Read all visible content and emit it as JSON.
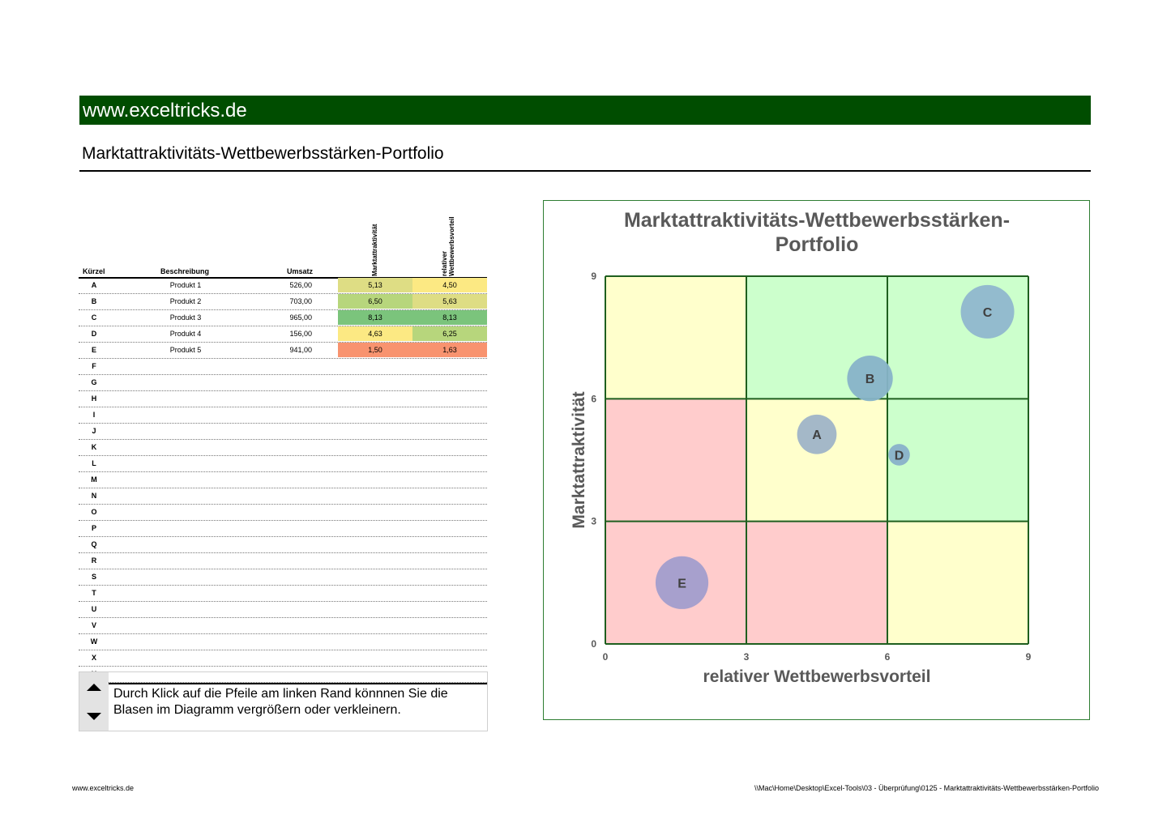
{
  "header": {
    "site": "www.exceltricks.de",
    "title": "Marktattraktivitäts-Wettbewerbsstärken-Portfolio"
  },
  "table": {
    "headers": {
      "kuerzel": "Kürzel",
      "beschreibung": "Beschreibung",
      "umsatz": "Umsatz",
      "markt": "Marktattraktivität",
      "wett_1": "relativer",
      "wett_2": "Wettbewerbsvorteil"
    },
    "rows": [
      {
        "k": "A",
        "b": "Produkt 1",
        "u": "526,00",
        "m": "5,13",
        "w": "4,50",
        "mc": "#dedd84",
        "wc": "#fce983"
      },
      {
        "k": "B",
        "b": "Produkt 2",
        "u": "703,00",
        "m": "6,50",
        "w": "5,63",
        "mc": "#b7d67c",
        "wc": "#dedd84"
      },
      {
        "k": "C",
        "b": "Produkt 3",
        "u": "965,00",
        "m": "8,13",
        "w": "8,13",
        "mc": "#7bc47c",
        "wc": "#7bc47c"
      },
      {
        "k": "D",
        "b": "Produkt 4",
        "u": "156,00",
        "m": "4,63",
        "w": "6,25",
        "mc": "#fce983",
        "wc": "#b7d67c"
      },
      {
        "k": "E",
        "b": "Produkt 5",
        "u": "941,00",
        "m": "1,50",
        "w": "1,63",
        "mc": "#f8936f",
        "wc": "#f8936f"
      },
      {
        "k": "F",
        "b": "",
        "u": "",
        "m": "",
        "w": ""
      },
      {
        "k": "G",
        "b": "",
        "u": "",
        "m": "",
        "w": ""
      },
      {
        "k": "H",
        "b": "",
        "u": "",
        "m": "",
        "w": ""
      },
      {
        "k": "I",
        "b": "",
        "u": "",
        "m": "",
        "w": ""
      },
      {
        "k": "J",
        "b": "",
        "u": "",
        "m": "",
        "w": ""
      },
      {
        "k": "K",
        "b": "",
        "u": "",
        "m": "",
        "w": ""
      },
      {
        "k": "L",
        "b": "",
        "u": "",
        "m": "",
        "w": ""
      },
      {
        "k": "M",
        "b": "",
        "u": "",
        "m": "",
        "w": ""
      },
      {
        "k": "N",
        "b": "",
        "u": "",
        "m": "",
        "w": ""
      },
      {
        "k": "O",
        "b": "",
        "u": "",
        "m": "",
        "w": ""
      },
      {
        "k": "P",
        "b": "",
        "u": "",
        "m": "",
        "w": ""
      },
      {
        "k": "Q",
        "b": "",
        "u": "",
        "m": "",
        "w": ""
      },
      {
        "k": "R",
        "b": "",
        "u": "",
        "m": "",
        "w": ""
      },
      {
        "k": "S",
        "b": "",
        "u": "",
        "m": "",
        "w": ""
      },
      {
        "k": "T",
        "b": "",
        "u": "",
        "m": "",
        "w": ""
      },
      {
        "k": "U",
        "b": "",
        "u": "",
        "m": "",
        "w": ""
      },
      {
        "k": "V",
        "b": "",
        "u": "",
        "m": "",
        "w": ""
      },
      {
        "k": "W",
        "b": "",
        "u": "",
        "m": "",
        "w": ""
      },
      {
        "k": "X",
        "b": "",
        "u": "",
        "m": "",
        "w": ""
      },
      {
        "k": "Y",
        "b": "",
        "u": "",
        "m": "",
        "w": ""
      }
    ]
  },
  "note": {
    "text": "Durch Klick auf die Pfeile am linken Rand könnnen Sie die Blasen im Diagramm vergrößern oder verkleinern."
  },
  "chart_data": {
    "type": "scatter",
    "subtype": "bubble",
    "title_line1": "Marktattraktivitäts-Wettbewerbsstärken-",
    "title_line2": "Portfolio",
    "xlabel": "relativer Wettbewerbsvorteil",
    "ylabel": "Marktattraktivität",
    "xlim": [
      0,
      9
    ],
    "ylim": [
      0,
      9
    ],
    "xticks": [
      0,
      3,
      6,
      9
    ],
    "yticks": [
      0,
      3,
      6,
      9
    ],
    "grid": true,
    "legend": "none",
    "points": [
      {
        "label": "A",
        "x": 4.5,
        "y": 5.13,
        "size": 526,
        "color": "#9fb4c7"
      },
      {
        "label": "B",
        "x": 5.63,
        "y": 6.5,
        "size": 703,
        "color": "#87b3c8"
      },
      {
        "label": "C",
        "x": 8.13,
        "y": 8.13,
        "size": 965,
        "color": "#8fb7cd"
      },
      {
        "label": "D",
        "x": 6.25,
        "y": 4.63,
        "size": 156,
        "color": "#88b1c9"
      },
      {
        "label": "E",
        "x": 1.63,
        "y": 1.5,
        "size": 941,
        "color": "#a29dcc"
      }
    ],
    "zone_colors": {
      "red": "#ffcccc",
      "yellow": "#ffffcc",
      "green": "#ccffcc"
    },
    "zones": [
      [
        "red",
        "red",
        "yellow"
      ],
      [
        "red",
        "yellow",
        "green"
      ],
      [
        "yellow",
        "green",
        "green"
      ]
    ],
    "grid_color": "#1f5f1f"
  },
  "footer": {
    "left": "www.exceltricks.de",
    "right": "\\\\Mac\\Home\\Desktop\\Excel-Tools\\03 - Überprüfung\\0125 - Marktattraktivitäts-Wettbewerbsstärken-Portfolio"
  }
}
